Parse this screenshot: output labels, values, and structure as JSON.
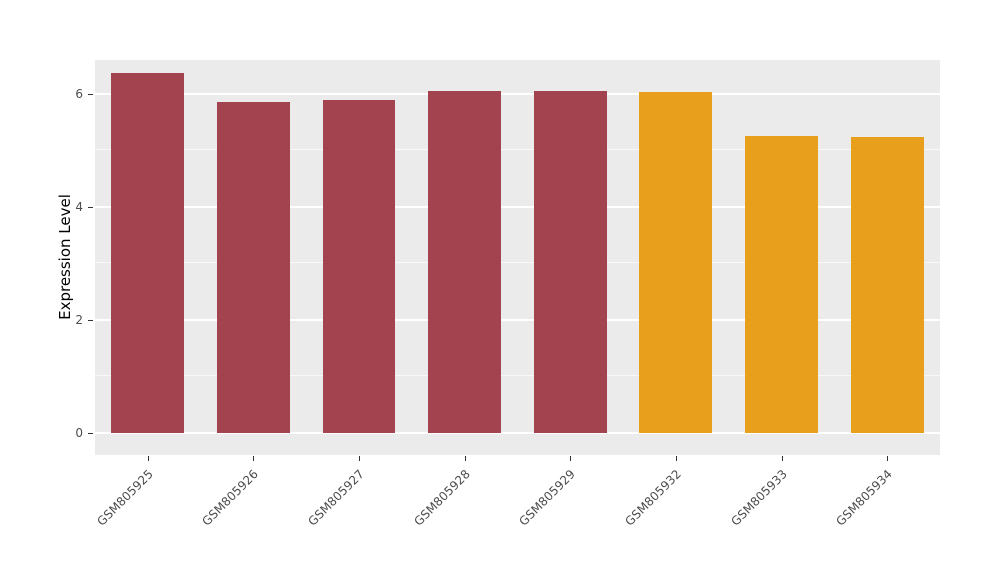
{
  "figure": {
    "background_color": "#FFFFFF",
    "panel_background_color": "#EBEBEB",
    "grid_color": "#FFFFFF",
    "tick_color": "#333333",
    "tick_label_color": "#4D4D4D",
    "axis_title_color": "#000000"
  },
  "chart_data": {
    "type": "bar",
    "title": "",
    "xlabel": "",
    "ylabel": "Expression Level",
    "categories": [
      "GSM805925",
      "GSM805926",
      "GSM805927",
      "GSM805928",
      "GSM805929",
      "GSM805932",
      "GSM805933",
      "GSM805934"
    ],
    "values": [
      6.37,
      5.86,
      5.9,
      6.06,
      6.06,
      6.03,
      5.25,
      5.23
    ],
    "bar_colors": [
      "#A2434F",
      "#A2434F",
      "#A2434F",
      "#A2434F",
      "#A2434F",
      "#E8A01C",
      "#E8A01C",
      "#E8A01C"
    ],
    "color_groups": [
      {
        "color": "#A2434F",
        "categories": [
          "GSM805925",
          "GSM805926",
          "GSM805927",
          "GSM805928",
          "GSM805929"
        ]
      },
      {
        "color": "#E8A01C",
        "categories": [
          "GSM805932",
          "GSM805933",
          "GSM805934"
        ]
      }
    ],
    "ylim": [
      -0.39,
      6.6
    ],
    "yticks": [
      0,
      2,
      4,
      6
    ],
    "yticks_minor": [
      1,
      3,
      5
    ],
    "grid": true,
    "legend": "none",
    "bar_width_fraction": 0.69
  }
}
